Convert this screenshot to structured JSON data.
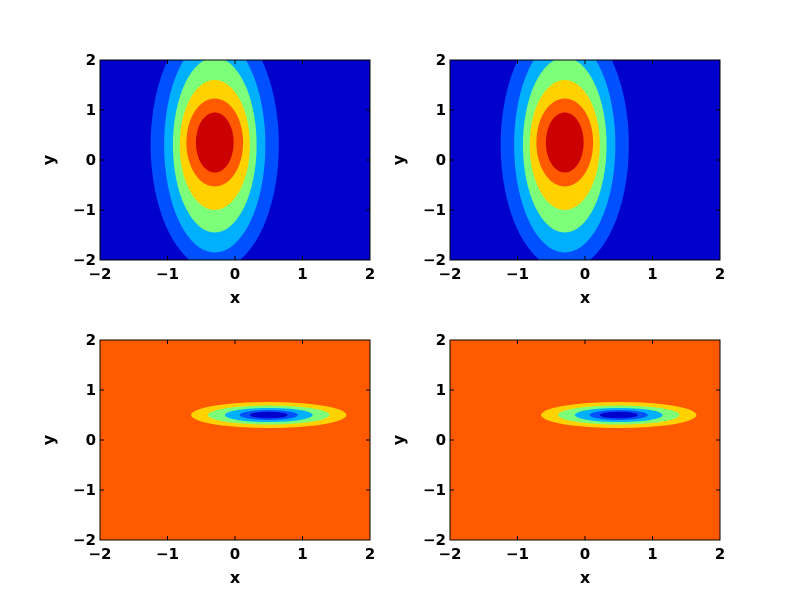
{
  "chart_data": [
    {
      "type": "contourf",
      "xlabel": "x",
      "ylabel": "y",
      "xlim": [
        -2,
        2
      ],
      "ylim": [
        -2,
        2
      ],
      "xticks": [
        -2,
        -1,
        0,
        1,
        2
      ],
      "yticks": [
        -2,
        -1,
        0,
        1,
        2
      ],
      "xtick_labels": [
        "−2",
        "−1",
        "0",
        "1",
        "2"
      ],
      "ytick_labels": [
        "−2",
        "−1",
        "0",
        "1",
        "2"
      ],
      "background_color": "#0000cd",
      "colormap": "jet",
      "contours": [
        {
          "level": 1,
          "cx": -0.3,
          "cy": 0.3,
          "rx": 0.95,
          "ry": 2.5,
          "color": "#0050ff"
        },
        {
          "level": 2,
          "cx": -0.3,
          "cy": 0.3,
          "rx": 0.75,
          "ry": 2.15,
          "color": "#00b0ff"
        },
        {
          "level": 3,
          "cx": -0.3,
          "cy": 0.3,
          "rx": 0.62,
          "ry": 1.75,
          "color": "#7dff7a"
        },
        {
          "level": 4,
          "cx": -0.3,
          "cy": 0.3,
          "rx": 0.52,
          "ry": 1.3,
          "color": "#ffd200"
        },
        {
          "level": 5,
          "cx": -0.3,
          "cy": 0.35,
          "rx": 0.42,
          "ry": 0.88,
          "color": "#ff5a00"
        },
        {
          "level": 6,
          "cx": -0.3,
          "cy": 0.35,
          "rx": 0.28,
          "ry": 0.6,
          "color": "#cc0000"
        }
      ]
    },
    {
      "type": "contourf",
      "xlabel": "x",
      "ylabel": "y",
      "xlim": [
        -2,
        2
      ],
      "ylim": [
        -2,
        2
      ],
      "xticks": [
        -2,
        -1,
        0,
        1,
        2
      ],
      "yticks": [
        -2,
        -1,
        0,
        1,
        2
      ],
      "xtick_labels": [
        "−2",
        "−1",
        "0",
        "1",
        "2"
      ],
      "ytick_labels": [
        "−2",
        "−1",
        "0",
        "1",
        "2"
      ],
      "background_color": "#0000cd",
      "colormap": "jet",
      "contours": [
        {
          "level": 1,
          "cx": -0.3,
          "cy": 0.3,
          "rx": 0.95,
          "ry": 2.5,
          "color": "#0050ff"
        },
        {
          "level": 2,
          "cx": -0.3,
          "cy": 0.3,
          "rx": 0.75,
          "ry": 2.15,
          "color": "#00b0ff"
        },
        {
          "level": 3,
          "cx": -0.3,
          "cy": 0.3,
          "rx": 0.62,
          "ry": 1.75,
          "color": "#7dff7a"
        },
        {
          "level": 4,
          "cx": -0.3,
          "cy": 0.3,
          "rx": 0.52,
          "ry": 1.3,
          "color": "#ffd200"
        },
        {
          "level": 5,
          "cx": -0.3,
          "cy": 0.35,
          "rx": 0.42,
          "ry": 0.88,
          "color": "#ff5a00"
        },
        {
          "level": 6,
          "cx": -0.3,
          "cy": 0.35,
          "rx": 0.28,
          "ry": 0.6,
          "color": "#cc0000"
        }
      ]
    },
    {
      "type": "contourf",
      "xlabel": "x",
      "ylabel": "y",
      "xlim": [
        -2,
        2
      ],
      "ylim": [
        -2,
        2
      ],
      "xticks": [
        -2,
        -1,
        0,
        1,
        2
      ],
      "yticks": [
        -2,
        -1,
        0,
        1,
        2
      ],
      "xtick_labels": [
        "−2",
        "−1",
        "0",
        "1",
        "2"
      ],
      "ytick_labels": [
        "−2",
        "−1",
        "0",
        "1",
        "2"
      ],
      "background_color": "#ff5a00",
      "colormap": "jet",
      "contours": [
        {
          "level": 1,
          "cx": 0.5,
          "cy": 0.5,
          "rx": 1.15,
          "ry": 0.26,
          "color": "#ffd200"
        },
        {
          "level": 2,
          "cx": 0.5,
          "cy": 0.5,
          "rx": 0.9,
          "ry": 0.19,
          "color": "#7dff7a"
        },
        {
          "level": 3,
          "cx": 0.5,
          "cy": 0.5,
          "rx": 0.65,
          "ry": 0.14,
          "color": "#00b0ff"
        },
        {
          "level": 4,
          "cx": 0.5,
          "cy": 0.5,
          "rx": 0.43,
          "ry": 0.1,
          "color": "#0050ff"
        },
        {
          "level": 5,
          "cx": 0.5,
          "cy": 0.5,
          "rx": 0.28,
          "ry": 0.065,
          "color": "#0000cd"
        }
      ]
    },
    {
      "type": "contourf",
      "xlabel": "x",
      "ylabel": "y",
      "xlim": [
        -2,
        2
      ],
      "ylim": [
        -2,
        2
      ],
      "xticks": [
        -2,
        -1,
        0,
        1,
        2
      ],
      "yticks": [
        -2,
        -1,
        0,
        1,
        2
      ],
      "xtick_labels": [
        "−2",
        "−1",
        "0",
        "1",
        "2"
      ],
      "ytick_labels": [
        "−2",
        "−1",
        "0",
        "1",
        "2"
      ],
      "background_color": "#ff5a00",
      "colormap": "jet",
      "contours": [
        {
          "level": 1,
          "cx": 0.5,
          "cy": 0.5,
          "rx": 1.15,
          "ry": 0.26,
          "color": "#ffd200"
        },
        {
          "level": 2,
          "cx": 0.5,
          "cy": 0.5,
          "rx": 0.9,
          "ry": 0.19,
          "color": "#7dff7a"
        },
        {
          "level": 3,
          "cx": 0.5,
          "cy": 0.5,
          "rx": 0.65,
          "ry": 0.14,
          "color": "#00b0ff"
        },
        {
          "level": 4,
          "cx": 0.5,
          "cy": 0.5,
          "rx": 0.43,
          "ry": 0.1,
          "color": "#0050ff"
        },
        {
          "level": 5,
          "cx": 0.5,
          "cy": 0.5,
          "rx": 0.28,
          "ry": 0.065,
          "color": "#0000cd"
        }
      ]
    }
  ]
}
